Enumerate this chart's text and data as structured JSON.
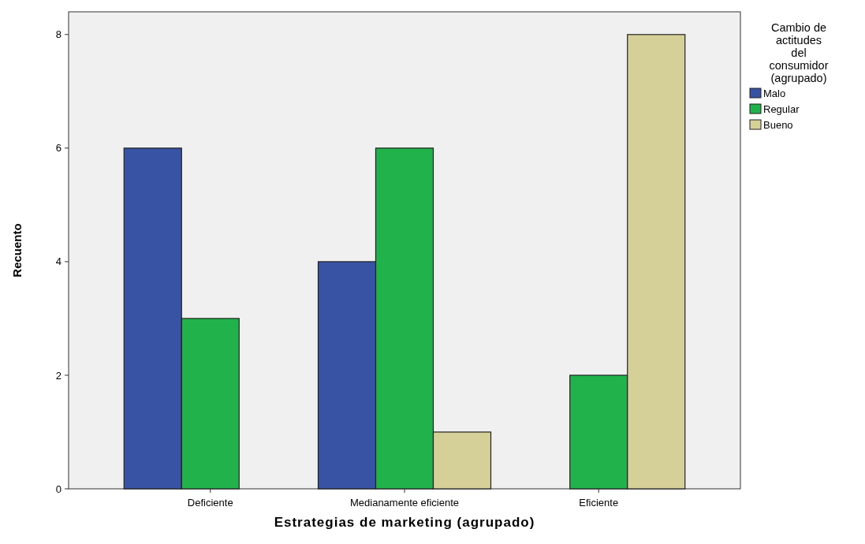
{
  "chart_data": {
    "type": "bar",
    "xlabel": "Estrategias de marketing (agrupado)",
    "ylabel": "Recuento",
    "legend_title": "Cambio de actitudes del consumidor (agrupado)",
    "categories": [
      "Deficiente",
      "Medianamente eficiente",
      "Eficiente"
    ],
    "series": [
      {
        "name": "Malo",
        "color": "#3953a4",
        "values": [
          6,
          4,
          null
        ]
      },
      {
        "name": "Regular",
        "color": "#21b24b",
        "values": [
          3,
          6,
          2
        ]
      },
      {
        "name": "Bueno",
        "color": "#d5cf98",
        "values": [
          null,
          1,
          8
        ]
      }
    ],
    "ylim": [
      0,
      8.4
    ],
    "yticks": [
      0,
      2,
      4,
      6,
      8
    ],
    "grid": false,
    "legend": "top right"
  }
}
